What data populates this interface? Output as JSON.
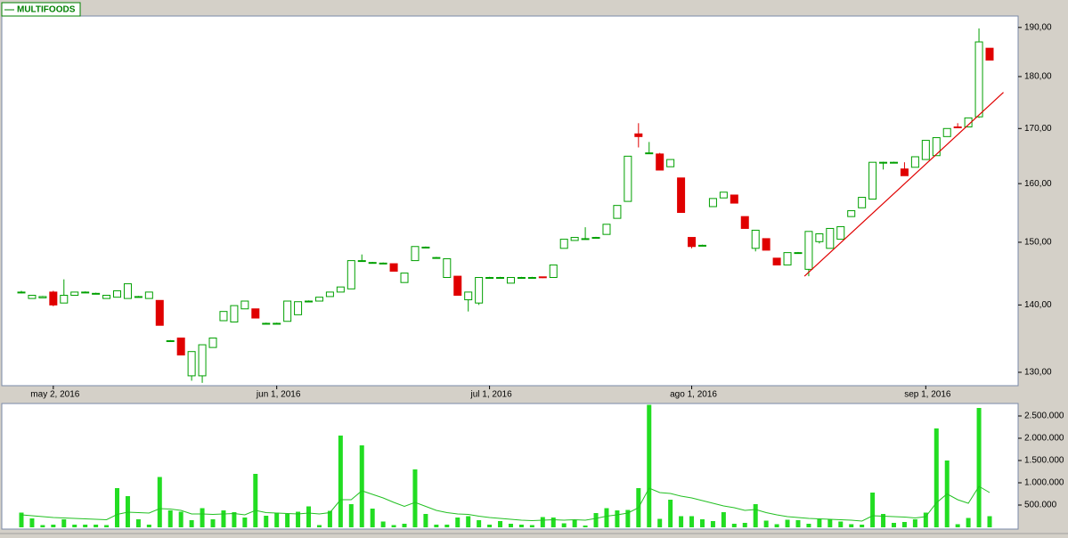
{
  "chart_data": [
    {
      "type": "candlestick",
      "legend": "MULTIFOODS",
      "legend_color": "#008000",
      "categories": [
        null,
        null,
        null,
        "may 2, 2016",
        null,
        null,
        null,
        null,
        null,
        null,
        null,
        null,
        null,
        null,
        null,
        null,
        null,
        null,
        null,
        null,
        null,
        null,
        null,
        null,
        "jun 1, 2016",
        null,
        null,
        null,
        null,
        null,
        null,
        null,
        null,
        null,
        null,
        null,
        null,
        null,
        null,
        null,
        null,
        null,
        null,
        null,
        "jul 1, 2016",
        null,
        null,
        null,
        null,
        null,
        null,
        null,
        null,
        null,
        null,
        null,
        null,
        null,
        null,
        null,
        null,
        null,
        null,
        "ago 1, 2016",
        null,
        null,
        null,
        null,
        null,
        null,
        null,
        null,
        null,
        null,
        null,
        null,
        null,
        null,
        null,
        null,
        null,
        null,
        null,
        null,
        null,
        "sep 1, 2016",
        null,
        null,
        null,
        null,
        null,
        null
      ],
      "open": [
        142,
        141,
        141.1,
        142,
        140.3,
        141.5,
        142,
        141.8,
        141,
        141.2,
        141,
        141.3,
        141,
        140.7,
        134.6,
        135,
        129.5,
        129.5,
        133.6,
        137.6,
        137.4,
        139.4,
        139.4,
        137.2,
        137.2,
        137.5,
        138.5,
        140.6,
        140.6,
        141.3,
        142,
        142.5,
        147,
        146.7,
        146.6,
        146.5,
        143.5,
        147,
        149.2,
        147.5,
        144.3,
        144.5,
        140.8,
        140.3,
        144.3,
        144.3,
        143.4,
        144.3,
        144.3,
        144.4,
        144.3,
        149,
        150.3,
        150.6,
        150.8,
        151.3,
        154,
        156.9,
        169,
        165.5,
        165.3,
        163,
        161,
        150.8,
        149.5,
        156,
        157.5,
        158,
        154.3,
        149,
        150.6,
        147.4,
        146.3,
        148.3,
        145.6,
        150.1,
        149,
        150.5,
        154.3,
        155.8,
        157.3,
        163.8,
        163.8,
        162.6,
        162.9,
        164.3,
        165,
        168.5,
        170.3,
        170.3,
        172.2,
        185.7
      ],
      "high": [
        142.2,
        141.5,
        141.4,
        142.2,
        144,
        142,
        142.1,
        141.9,
        141.5,
        142.2,
        143.3,
        141.4,
        142,
        140.7,
        134.7,
        135,
        133,
        134,
        135,
        139,
        139.9,
        140.6,
        139.4,
        137.3,
        137.3,
        140.6,
        140.5,
        140.7,
        141.2,
        142,
        142.8,
        147,
        148,
        146.8,
        146.7,
        146.5,
        145,
        149.3,
        149.3,
        147.6,
        147.3,
        144.5,
        142,
        144.3,
        144.4,
        144.4,
        144.3,
        144.4,
        144.4,
        144.4,
        146.3,
        150.5,
        150.8,
        152.5,
        150.9,
        153,
        156.2,
        164.9,
        171,
        167.5,
        165.5,
        164.3,
        161,
        150.8,
        149.6,
        157.4,
        158.5,
        158,
        154.3,
        152,
        150.6,
        147.4,
        148.3,
        148.4,
        151.8,
        151.4,
        152.3,
        152.6,
        155.3,
        157.6,
        163.8,
        163.9,
        163.9,
        163.8,
        164.8,
        167.8,
        168.3,
        170,
        171,
        172,
        189.8,
        185.7
      ],
      "low": [
        141.8,
        141,
        141.1,
        139.8,
        140.3,
        141.5,
        141.9,
        141.7,
        141,
        141.2,
        141,
        141.2,
        141,
        136.9,
        134.5,
        132.5,
        128.8,
        128.5,
        133.6,
        137.6,
        137.4,
        139.4,
        138,
        137.1,
        137.1,
        137.5,
        138.5,
        140.5,
        140.6,
        141.3,
        142,
        142.5,
        147,
        146.6,
        146.5,
        145.3,
        143.5,
        147,
        149.1,
        147.4,
        144.3,
        141.5,
        139,
        140,
        144.2,
        144.2,
        143.4,
        144.2,
        144.2,
        144.2,
        144.3,
        149,
        150.3,
        150.5,
        150.7,
        151.3,
        154,
        156.9,
        166.5,
        165.4,
        162.4,
        163,
        155,
        149,
        149.4,
        156,
        157.5,
        156.6,
        152.3,
        148.5,
        148.7,
        146.3,
        146.3,
        148.2,
        144.5,
        149.8,
        149,
        150.5,
        154.3,
        155.8,
        157.3,
        162.5,
        163.7,
        161.4,
        162.9,
        164.3,
        165,
        168.5,
        170.2,
        170.3,
        172,
        183.3
      ],
      "close": [
        142,
        141.5,
        141.3,
        140,
        141.5,
        142,
        142,
        141.8,
        141.5,
        142.2,
        143.3,
        141.3,
        142,
        136.9,
        134.6,
        132.5,
        133,
        134,
        135,
        139,
        139.9,
        140.6,
        138,
        137.2,
        137.2,
        140.6,
        140.5,
        140.6,
        141.2,
        142,
        142.8,
        147,
        147,
        146.7,
        146.6,
        145.3,
        145,
        149.3,
        149.2,
        147.5,
        147.3,
        141.5,
        142,
        144.3,
        144.3,
        144.3,
        144.3,
        144.3,
        144.3,
        144.3,
        146.3,
        150.5,
        150.8,
        150.6,
        150.8,
        153,
        156.2,
        164.9,
        168.5,
        165.5,
        162.4,
        164.3,
        155,
        149.3,
        149.5,
        157.4,
        158.5,
        156.6,
        152.3,
        152,
        148.7,
        146.3,
        148.3,
        148.3,
        151.8,
        151.4,
        152.3,
        152.6,
        155.3,
        157.6,
        163.8,
        163.8,
        163.8,
        161.4,
        164.8,
        167.8,
        168.3,
        170,
        170.2,
        172,
        187,
        183.3
      ],
      "up_color": "#00a000",
      "down_color": "#e00000",
      "log_scale": true,
      "ylim": [
        128.1,
        192.4
      ],
      "yticks": [
        {
          "value": 130,
          "label": "130,00"
        },
        {
          "value": 140,
          "label": "140,00"
        },
        {
          "value": 150,
          "label": "150,00"
        },
        {
          "value": 160,
          "label": "160,00"
        },
        {
          "value": 170,
          "label": "170,00"
        },
        {
          "value": 180,
          "label": "180,00"
        },
        {
          "value": 190,
          "label": "190,00"
        }
      ],
      "trendline": {
        "color": "#e00000",
        "x": [
          73.6,
          92.3
        ],
        "y": [
          144.5,
          176.9
        ]
      }
    },
    {
      "type": "bar",
      "values": [
        330000,
        200000,
        50000,
        60000,
        180000,
        60000,
        60000,
        60000,
        50000,
        880000,
        700000,
        180000,
        60000,
        1130000,
        380000,
        350000,
        160000,
        430000,
        180000,
        380000,
        340000,
        220000,
        1200000,
        260000,
        330000,
        300000,
        350000,
        470000,
        50000,
        370000,
        2060000,
        520000,
        1840000,
        420000,
        130000,
        50000,
        80000,
        1300000,
        300000,
        60000,
        60000,
        220000,
        250000,
        160000,
        60000,
        140000,
        80000,
        60000,
        50000,
        230000,
        220000,
        90000,
        160000,
        40000,
        320000,
        430000,
        380000,
        390000,
        880000,
        2750000,
        190000,
        620000,
        250000,
        250000,
        180000,
        140000,
        340000,
        80000,
        100000,
        520000,
        150000,
        70000,
        170000,
        160000,
        80000,
        180000,
        180000,
        130000,
        70000,
        60000,
        780000,
        300000,
        100000,
        120000,
        180000,
        330000,
        2220000,
        1500000,
        70000,
        210000,
        2680000,
        250000
      ],
      "color": "#22dd22",
      "average": {
        "color": "#22c022",
        "values": [
          280000,
          260000,
          240000,
          220000,
          210000,
          200000,
          190000,
          180000,
          170000,
          290000,
          340000,
          330000,
          320000,
          420000,
          410000,
          380000,
          300000,
          300000,
          290000,
          300000,
          310000,
          280000,
          380000,
          330000,
          320000,
          310000,
          300000,
          320000,
          300000,
          330000,
          620000,
          620000,
          820000,
          740000,
          660000,
          560000,
          470000,
          560000,
          470000,
          380000,
          330000,
          300000,
          290000,
          250000,
          220000,
          200000,
          180000,
          160000,
          150000,
          160000,
          170000,
          160000,
          170000,
          160000,
          200000,
          250000,
          280000,
          320000,
          440000,
          880000,
          780000,
          760000,
          700000,
          660000,
          600000,
          540000,
          480000,
          440000,
          380000,
          400000,
          330000,
          280000,
          240000,
          220000,
          200000,
          190000,
          180000,
          170000,
          160000,
          140000,
          260000,
          250000,
          240000,
          230000,
          210000,
          240000,
          550000,
          750000,
          620000,
          540000,
          920000,
          780000
        ]
      },
      "ylim": [
        0,
        2780000
      ],
      "yticks": [
        {
          "value": 500000,
          "label": "500.000"
        },
        {
          "value": 1000000,
          "label": "1.000.000"
        },
        {
          "value": 1500000,
          "label": "1.500.000"
        },
        {
          "value": 2000000,
          "label": "2.000.000"
        },
        {
          "value": 2500000,
          "label": "2.500.000"
        }
      ]
    }
  ]
}
